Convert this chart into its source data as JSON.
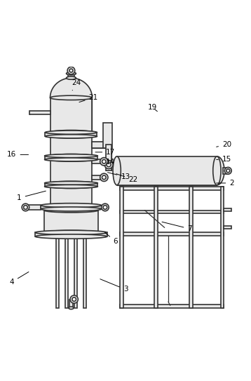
{
  "background_color": "#ffffff",
  "line_color": "#333333",
  "fill_color": "#e8e8e8",
  "fill_light": "#f0f0f0",
  "line_width": 1.2,
  "label_fontsize": 7.5,
  "labels_text": [
    "1",
    "2",
    "3",
    "4",
    "6",
    "7",
    "13",
    "14",
    "15",
    "16",
    "17",
    "19",
    "20",
    "21",
    "22",
    "24"
  ],
  "labels_xy": {
    "1": [
      0.07,
      0.47,
      0.185,
      0.5
    ],
    "2": [
      0.93,
      0.53,
      0.86,
      0.53
    ],
    "3": [
      0.5,
      0.1,
      0.39,
      0.145
    ],
    "4": [
      0.04,
      0.13,
      0.115,
      0.175
    ],
    "6": [
      0.46,
      0.295,
      0.41,
      0.335
    ],
    "7": [
      0.76,
      0.345,
      0.64,
      0.375
    ],
    "13": [
      0.5,
      0.555,
      0.42,
      0.575
    ],
    "14": [
      0.44,
      0.615,
      0.42,
      0.625
    ],
    "15": [
      0.91,
      0.625,
      0.86,
      0.625
    ],
    "16": [
      0.04,
      0.645,
      0.115,
      0.645
    ],
    "17": [
      0.44,
      0.655,
      0.37,
      0.655
    ],
    "19": [
      0.61,
      0.835,
      0.635,
      0.815
    ],
    "20": [
      0.91,
      0.685,
      0.86,
      0.675
    ],
    "21": [
      0.37,
      0.875,
      0.305,
      0.855
    ],
    "22": [
      0.53,
      0.545,
      0.455,
      0.57
    ],
    "24": [
      0.3,
      0.935,
      0.285,
      0.905
    ]
  }
}
